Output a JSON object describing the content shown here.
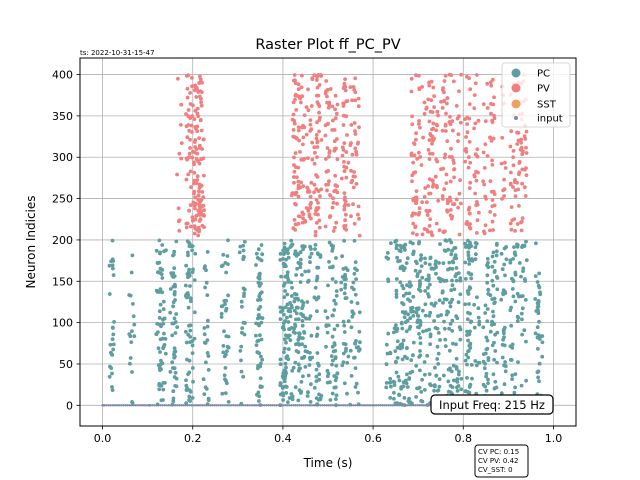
{
  "chart_data": {
    "type": "scatter",
    "title": "Raster Plot ff_PC_PV",
    "timestamp": "ts: 2022-10-31-15-47",
    "xlabel": "Time (s)",
    "ylabel": "Neuron Indicies",
    "xlim": [
      -0.05,
      1.05
    ],
    "ylim": [
      -25,
      420
    ],
    "xticks": [
      0.0,
      0.2,
      0.4,
      0.6,
      0.8,
      1.0
    ],
    "xtick_labels": [
      "0.0",
      "0.2",
      "0.4",
      "0.6",
      "0.8",
      "1.0"
    ],
    "yticks": [
      0,
      50,
      100,
      150,
      200,
      250,
      300,
      350,
      400
    ],
    "ytick_labels": [
      "0",
      "50",
      "100",
      "150",
      "200",
      "250",
      "300",
      "350",
      "400"
    ],
    "grid": true,
    "legend_position": "top-right",
    "series": [
      {
        "name": "PC",
        "color": "#5f9ea0",
        "neuron_range": [
          0,
          200
        ],
        "firing_times": [
          0.02,
          0.065,
          0.125,
          0.13,
          0.135,
          0.155,
          0.16,
          0.19,
          0.195,
          0.2,
          0.23,
          0.27,
          0.275,
          0.31,
          0.345,
          0.35,
          0.4,
          0.405,
          0.41,
          0.415,
          0.425,
          0.43,
          0.44,
          0.445,
          0.455,
          0.46,
          0.475,
          0.48,
          0.5,
          0.505,
          0.515,
          0.535,
          0.54,
          0.555,
          0.565,
          0.635,
          0.65,
          0.655,
          0.665,
          0.67,
          0.68,
          0.685,
          0.7,
          0.705,
          0.72,
          0.725,
          0.74,
          0.745,
          0.76,
          0.77,
          0.775,
          0.785,
          0.79,
          0.81,
          0.815,
          0.83,
          0.85,
          0.865,
          0.87,
          0.89,
          0.91,
          0.925,
          0.935,
          0.965,
          0.97
        ]
      },
      {
        "name": "PV",
        "color": "#f08080",
        "neuron_range": [
          205,
          400
        ],
        "firing_times": [
          0.17,
          0.19,
          0.2,
          0.205,
          0.21,
          0.215,
          0.22,
          0.425,
          0.43,
          0.44,
          0.45,
          0.46,
          0.475,
          0.48,
          0.5,
          0.515,
          0.535,
          0.54,
          0.555,
          0.565,
          0.69,
          0.7,
          0.705,
          0.72,
          0.73,
          0.745,
          0.76,
          0.775,
          0.79,
          0.81,
          0.83,
          0.85,
          0.865,
          0.89,
          0.91,
          0.925,
          0.935
        ]
      },
      {
        "name": "SST",
        "color": "#f0a060",
        "neuron_range": [],
        "firing_times": []
      },
      {
        "name": "input",
        "color": "#7a8aa8",
        "neuron_range": [
          0,
          0
        ],
        "firing_times": [
          0.0,
          0.1
        ]
      }
    ],
    "annotations": {
      "input_freq": "Input Freq: 215 Hz",
      "cv_lines": [
        "CV PC: 0.15",
        "CV PV: 0.42",
        "CV_SST: 0"
      ]
    }
  }
}
